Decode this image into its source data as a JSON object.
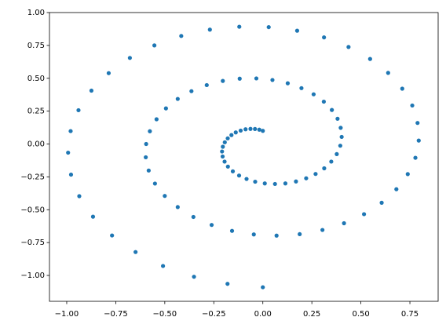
{
  "chart_data": {
    "type": "scatter",
    "color": "#1f77b4",
    "x": [
      0.0,
      -0.018,
      -0.04,
      -0.063,
      -0.088,
      -0.113,
      -0.138,
      -0.16,
      -0.179,
      -0.194,
      -0.204,
      -0.208,
      -0.205,
      -0.195,
      -0.178,
      -0.153,
      -0.121,
      -0.083,
      -0.039,
      0.01,
      0.062,
      0.115,
      0.169,
      0.221,
      0.269,
      0.313,
      0.349,
      0.377,
      0.395,
      0.402,
      0.397,
      0.381,
      0.352,
      0.311,
      0.259,
      0.197,
      0.127,
      0.049,
      -0.033,
      -0.118,
      -0.204,
      -0.286,
      -0.364,
      -0.434,
      -0.494,
      -0.542,
      -0.576,
      -0.595,
      -0.597,
      -0.582,
      -0.55,
      -0.5,
      -0.434,
      -0.354,
      -0.261,
      -0.157,
      -0.046,
      0.07,
      0.188,
      0.304,
      0.414,
      0.516,
      0.606,
      0.681,
      0.739,
      0.778,
      0.795,
      0.789,
      0.762,
      0.711,
      0.639,
      0.547,
      0.437,
      0.312,
      0.175,
      0.03,
      -0.12,
      -0.27,
      -0.416,
      -0.553,
      -0.678,
      -0.786,
      -0.874,
      -0.94,
      -0.98,
      -0.993,
      -0.978,
      -0.936,
      -0.866,
      -0.769,
      -0.649,
      -0.509,
      -0.351,
      -0.18,
      0.0
    ],
    "y": [
      0.1,
      0.109,
      0.114,
      0.115,
      0.112,
      0.102,
      0.088,
      0.068,
      0.043,
      0.013,
      -0.021,
      -0.057,
      -0.095,
      -0.134,
      -0.172,
      -0.208,
      -0.24,
      -0.266,
      -0.287,
      -0.3,
      -0.304,
      -0.3,
      -0.285,
      -0.261,
      -0.228,
      -0.185,
      -0.134,
      -0.077,
      -0.013,
      0.054,
      0.123,
      0.192,
      0.259,
      0.322,
      0.378,
      0.425,
      0.462,
      0.487,
      0.499,
      0.497,
      0.48,
      0.448,
      0.402,
      0.343,
      0.271,
      0.188,
      0.097,
      0.0,
      -0.101,
      -0.202,
      -0.301,
      -0.395,
      -0.48,
      -0.555,
      -0.616,
      -0.661,
      -0.688,
      -0.697,
      -0.686,
      -0.654,
      -0.603,
      -0.534,
      -0.447,
      -0.344,
      -0.229,
      -0.105,
      0.026,
      0.16,
      0.293,
      0.421,
      0.541,
      0.647,
      0.738,
      0.811,
      0.862,
      0.889,
      0.892,
      0.87,
      0.822,
      0.75,
      0.655,
      0.539,
      0.406,
      0.257,
      0.098,
      -0.066,
      -0.233,
      -0.397,
      -0.553,
      -0.696,
      -0.822,
      -0.928,
      -1.01,
      -1.064,
      -1.09
    ],
    "xlim": [
      -1.088,
      0.894
    ],
    "ylim": [
      -1.197,
      1.0
    ],
    "xticks": [
      {
        "value": -1.0,
        "label": "−1.00"
      },
      {
        "value": -0.75,
        "label": "−0.75"
      },
      {
        "value": -0.5,
        "label": "−0.50"
      },
      {
        "value": -0.25,
        "label": "−0.25"
      },
      {
        "value": 0.0,
        "label": "0.00"
      },
      {
        "value": 0.25,
        "label": "0.25"
      },
      {
        "value": 0.5,
        "label": "0.50"
      },
      {
        "value": 0.75,
        "label": "0.75"
      }
    ],
    "yticks": [
      {
        "value": -1.0,
        "label": "−1.00"
      },
      {
        "value": -0.75,
        "label": "−0.75"
      },
      {
        "value": -0.5,
        "label": "−0.50"
      },
      {
        "value": -0.25,
        "label": "−0.25"
      },
      {
        "value": 0.0,
        "label": "0.00"
      },
      {
        "value": 0.25,
        "label": "0.25"
      },
      {
        "value": 0.5,
        "label": "0.50"
      },
      {
        "value": 0.75,
        "label": "0.75"
      },
      {
        "value": 1.0,
        "label": "1.00"
      }
    ]
  }
}
